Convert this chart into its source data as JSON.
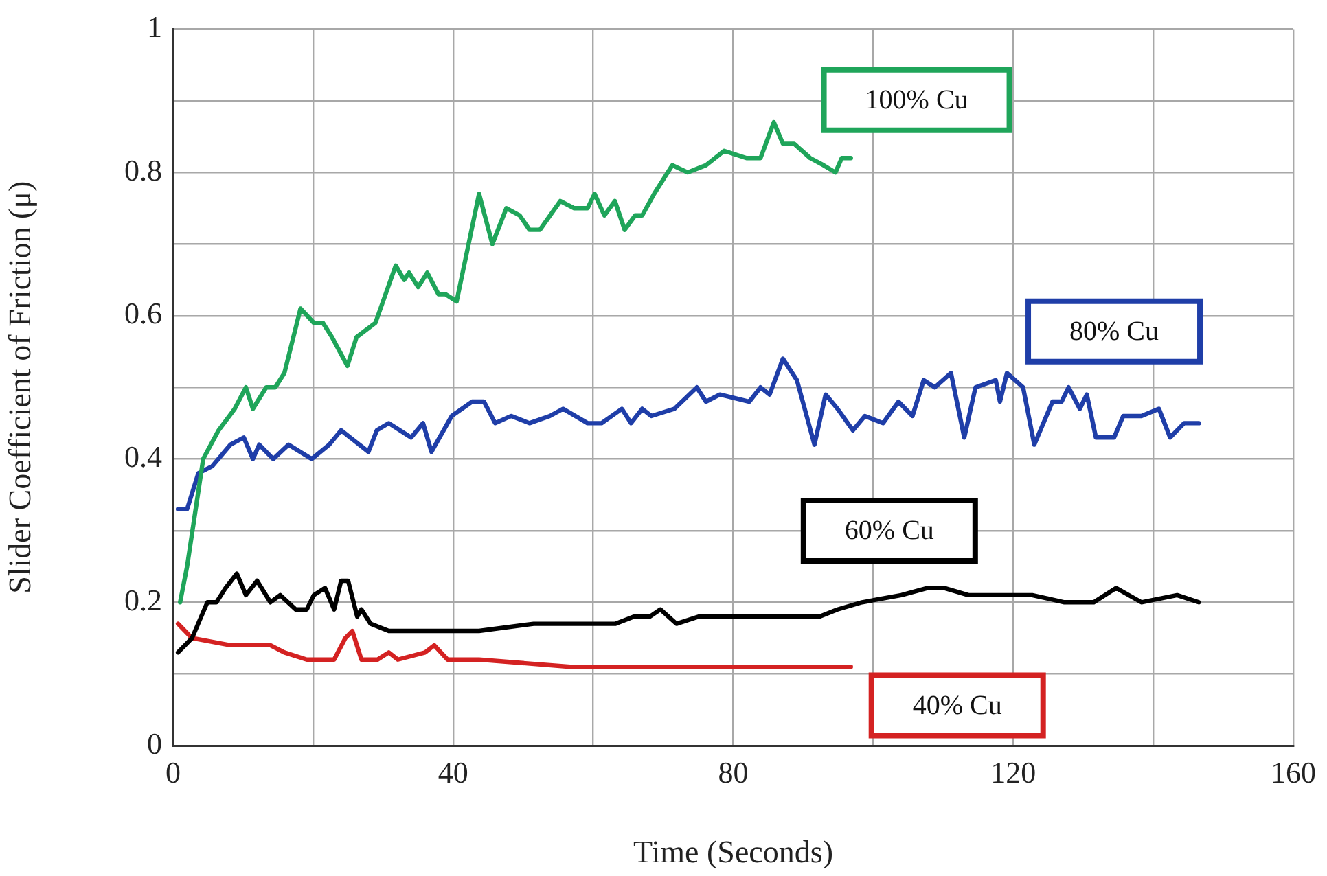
{
  "chart_data": {
    "type": "line",
    "xlabel": "Time (Seconds)",
    "ylabel": "Slider Coefficient of Friction (μ)",
    "xlim": [
      0,
      160
    ],
    "xticks": [
      0,
      {
        "value": 20,
        "label": null
      },
      40,
      {
        "value": 60,
        "label": null
      },
      80,
      {
        "value": 100,
        "label": null
      },
      120,
      {
        "value": 140,
        "label": null
      },
      160
    ],
    "ylim": [
      0,
      1
    ],
    "yticks": [
      0,
      {
        "value": 0.1,
        "label": null
      },
      0.2,
      {
        "value": 0.3,
        "label": null
      },
      0.4,
      {
        "value": 0.5,
        "label": null
      },
      0.6,
      {
        "value": 0.7,
        "label": null
      },
      0.8,
      {
        "value": 0.9,
        "label": null
      },
      1
    ],
    "grid": true,
    "legend": false,
    "marker": "none",
    "line_style": "solid",
    "series": [
      {
        "name": "100% Cu",
        "color": "#1fa55a",
        "x": [
          1,
          2,
          4.3,
          6.5,
          8.8,
          10.4,
          11.4,
          13.3,
          14.6,
          15.9,
          18.2,
          20.1,
          21.4,
          22.7,
          24.9,
          26.2,
          28.9,
          31.8,
          33,
          33.7,
          35,
          36.3,
          37.9,
          38.9,
          40.5,
          43.7,
          45.6,
          47.6,
          49.5,
          50.9,
          52.4,
          55.3,
          57.3,
          59.2,
          60.2,
          61.6,
          63.1,
          64.5,
          66,
          67,
          68.7,
          71.3,
          73.5,
          76.1,
          78.7,
          81.9,
          83.9,
          85.8,
          87.1,
          88.7,
          91,
          92.9,
          94.6,
          95.5,
          96.8
        ],
        "values": [
          0.2,
          0.25,
          0.4,
          0.44,
          0.47,
          0.5,
          0.47,
          0.5,
          0.5,
          0.52,
          0.61,
          0.59,
          0.59,
          0.57,
          0.53,
          0.57,
          0.59,
          0.67,
          0.65,
          0.66,
          0.64,
          0.66,
          0.63,
          0.63,
          0.62,
          0.77,
          0.7,
          0.75,
          0.74,
          0.72,
          0.72,
          0.76,
          0.75,
          0.75,
          0.77,
          0.74,
          0.76,
          0.72,
          0.74,
          0.74,
          0.77,
          0.81,
          0.8,
          0.81,
          0.83,
          0.82,
          0.82,
          0.87,
          0.84,
          0.84,
          0.82,
          0.81,
          0.8,
          0.82,
          0.82
        ]
      },
      {
        "name": "80% Cu",
        "color": "#1f3ea8",
        "x": [
          0.7,
          2,
          3.6,
          5.6,
          8.2,
          10.1,
          11.4,
          12.3,
          14.3,
          16.5,
          19.8,
          22.3,
          24,
          27.9,
          29.1,
          30.8,
          34,
          35.7,
          36.9,
          39.8,
          42.7,
          44.4,
          46,
          48.3,
          50.9,
          53.8,
          55.7,
          59.2,
          61.2,
          64.1,
          65.4,
          67,
          68.3,
          71.6,
          74.8,
          76.1,
          78.1,
          82.3,
          83.9,
          85.2,
          87.1,
          89.1,
          91.6,
          93.2,
          94.9,
          97.1,
          98.8,
          101.4,
          103.6,
          105.6,
          107.2,
          108.8,
          111.1,
          113,
          114.6,
          117.5,
          118.1,
          119.1,
          121.4,
          123,
          125.6,
          126.9,
          127.9,
          129.5,
          130.5,
          131.8,
          134.4,
          135.7,
          138.3,
          140.8,
          142.4,
          144.4,
          146.5
        ],
        "values": [
          0.33,
          0.33,
          0.38,
          0.39,
          0.42,
          0.43,
          0.4,
          0.42,
          0.4,
          0.42,
          0.4,
          0.42,
          0.44,
          0.41,
          0.44,
          0.45,
          0.43,
          0.45,
          0.41,
          0.46,
          0.48,
          0.48,
          0.45,
          0.46,
          0.45,
          0.46,
          0.47,
          0.45,
          0.45,
          0.47,
          0.45,
          0.47,
          0.46,
          0.47,
          0.5,
          0.48,
          0.49,
          0.48,
          0.5,
          0.49,
          0.54,
          0.51,
          0.42,
          0.49,
          0.47,
          0.44,
          0.46,
          0.45,
          0.48,
          0.46,
          0.51,
          0.5,
          0.52,
          0.43,
          0.5,
          0.51,
          0.48,
          0.52,
          0.5,
          0.42,
          0.48,
          0.48,
          0.5,
          0.47,
          0.49,
          0.43,
          0.43,
          0.46,
          0.46,
          0.47,
          0.43,
          0.45,
          0.45
        ]
      },
      {
        "name": "60% Cu",
        "color": "#000000",
        "x": [
          0.7,
          2.7,
          4.9,
          6.2,
          7.5,
          9.1,
          10.4,
          12,
          13.9,
          15.3,
          17.5,
          19.1,
          20.1,
          21.7,
          23,
          24,
          25,
          26.3,
          26.9,
          28.2,
          30.8,
          37.3,
          43.7,
          51.5,
          63.2,
          65.8,
          68.1,
          69.6,
          71.9,
          75.1,
          78.7,
          92.3,
          94.9,
          98.4,
          104,
          107.8,
          110.1,
          113.6,
          118.2,
          122.7,
          127.3,
          131.5,
          134.7,
          138.3,
          143.4,
          146.5
        ],
        "values": [
          0.13,
          0.15,
          0.2,
          0.2,
          0.22,
          0.24,
          0.21,
          0.23,
          0.2,
          0.21,
          0.19,
          0.19,
          0.21,
          0.22,
          0.19,
          0.23,
          0.23,
          0.18,
          0.19,
          0.17,
          0.16,
          0.16,
          0.16,
          0.17,
          0.17,
          0.18,
          0.18,
          0.19,
          0.17,
          0.18,
          0.18,
          0.18,
          0.19,
          0.2,
          0.21,
          0.22,
          0.22,
          0.21,
          0.21,
          0.21,
          0.2,
          0.2,
          0.22,
          0.2,
          0.21,
          0.2
        ]
      },
      {
        "name": "40% Cu",
        "color": "#d42222",
        "x": [
          0.7,
          2.7,
          8.2,
          13.9,
          15.9,
          19.1,
          23,
          24.6,
          25.6,
          26.9,
          29.2,
          30.8,
          32.1,
          36,
          37.3,
          39.2,
          43.7,
          56.7,
          80,
          96.8
        ],
        "values": [
          0.17,
          0.15,
          0.14,
          0.14,
          0.13,
          0.12,
          0.12,
          0.15,
          0.16,
          0.12,
          0.12,
          0.13,
          0.12,
          0.13,
          0.14,
          0.12,
          0.12,
          0.11,
          0.11,
          0.11
        ]
      }
    ]
  }
}
